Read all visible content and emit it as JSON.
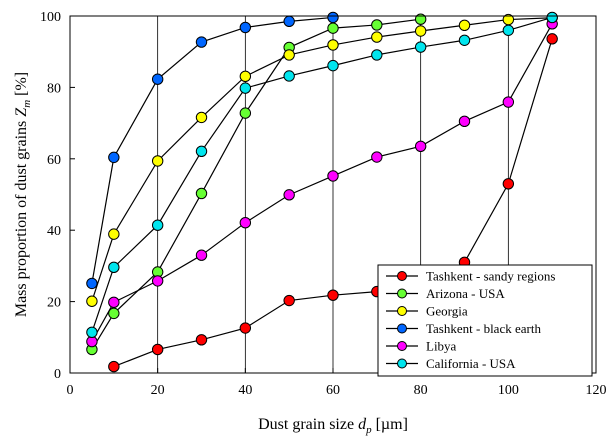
{
  "chart_data": {
    "type": "line",
    "xlabel": "Dust grain size d_p  [µm]",
    "ylabel": "Mass proportion of dust grains Z_m  [%]",
    "xlim": [
      0,
      120
    ],
    "ylim": [
      0,
      100
    ],
    "xticks": [
      0,
      20,
      40,
      60,
      80,
      100,
      120
    ],
    "yticks": [
      0,
      20,
      40,
      60,
      80,
      100
    ],
    "grid": "vertical",
    "legend_position": "bottom-right",
    "series": [
      {
        "name": "Tashkent - sandy regions",
        "color": "#ff0000",
        "x": [
          10,
          20,
          30,
          40,
          50,
          60,
          70,
          80,
          90,
          100,
          110
        ],
        "y": [
          1.8,
          6.6,
          9.3,
          12.6,
          20.3,
          21.8,
          22.8,
          24.5,
          31.0,
          53.0,
          93.6
        ]
      },
      {
        "name": "Arizona - USA",
        "color": "#66ff33",
        "x": [
          5,
          10,
          20,
          30,
          40,
          50,
          60,
          70,
          80
        ],
        "y": [
          6.6,
          16.7,
          28.3,
          50.3,
          72.8,
          91.2,
          96.6,
          97.5,
          99.1
        ]
      },
      {
        "name": "Georgia",
        "color": "#ffff00",
        "x": [
          5,
          10,
          20,
          30,
          40,
          50,
          60,
          70,
          80,
          90,
          100,
          110
        ],
        "y": [
          20.1,
          38.9,
          59.4,
          71.6,
          83.1,
          89.1,
          91.9,
          94.1,
          95.8,
          97.4,
          99.0,
          99.5
        ]
      },
      {
        "name": "Tashkent - black earth",
        "color": "#0066ff",
        "x": [
          5,
          10,
          20,
          30,
          40,
          50,
          60
        ],
        "y": [
          25.1,
          60.4,
          82.3,
          92.7,
          96.8,
          98.5,
          99.6
        ]
      },
      {
        "name": "Libya",
        "color": "#ff00ff",
        "x": [
          5,
          10,
          20,
          30,
          40,
          50,
          60,
          70,
          80,
          90,
          100,
          110
        ],
        "y": [
          8.8,
          19.8,
          25.8,
          33.0,
          42.1,
          49.9,
          55.2,
          60.5,
          63.5,
          70.5,
          75.9,
          97.8
        ]
      },
      {
        "name": "California - USA",
        "color": "#00e5ee",
        "x": [
          5,
          10,
          20,
          30,
          40,
          50,
          60,
          70,
          80,
          90,
          100,
          110
        ],
        "y": [
          11.4,
          29.6,
          41.4,
          62.1,
          79.8,
          83.2,
          86.1,
          89.1,
          91.3,
          93.2,
          96.0,
          99.6
        ]
      }
    ]
  }
}
